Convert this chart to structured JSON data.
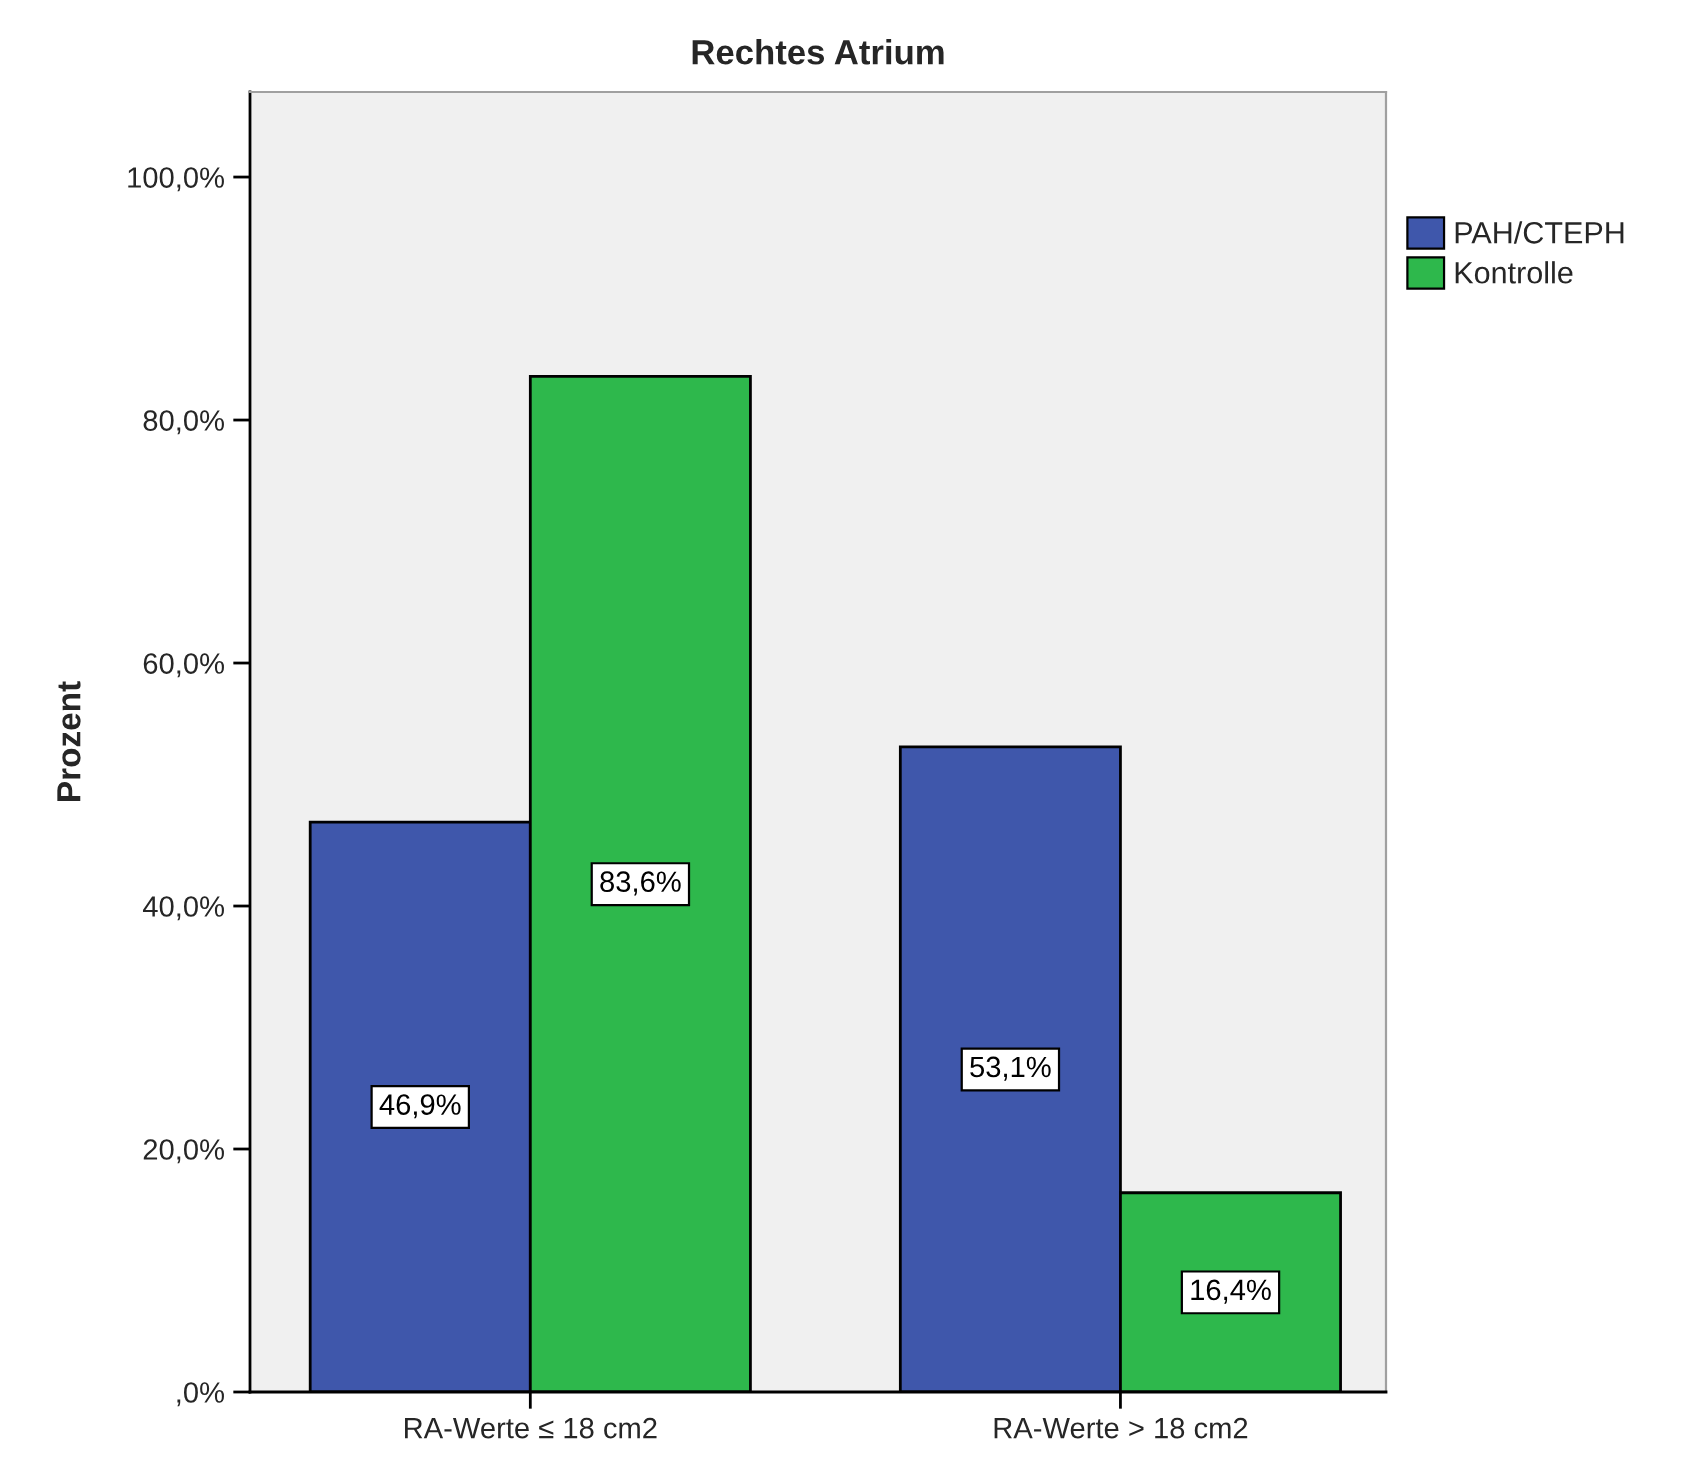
{
  "chart_data": {
    "type": "bar",
    "title": "Rechtes Atrium",
    "ylabel": "Prozent",
    "categories": [
      "RA-Werte ≤ 18 cm2",
      "RA-Werte > 18 cm2"
    ],
    "series": [
      {
        "name": "PAH/CTEPH",
        "color": "#3f57ab",
        "values": [
          46.9,
          53.1
        ],
        "value_labels": [
          "46,9%",
          "53,1%"
        ]
      },
      {
        "name": "Kontrolle",
        "color": "#2eb84c",
        "values": [
          83.6,
          16.4
        ],
        "value_labels": [
          "83,6%",
          "16,4%"
        ]
      }
    ],
    "ylim": [
      0,
      107
    ],
    "yticks": [
      {
        "value": 0,
        "label": ",0%"
      },
      {
        "value": 20,
        "label": "20,0%"
      },
      {
        "value": 40,
        "label": "40,0%"
      },
      {
        "value": 60,
        "label": "60,0%"
      },
      {
        "value": 80,
        "label": "80,0%"
      },
      {
        "value": 100,
        "label": "100,0%"
      }
    ],
    "legend": "top right"
  }
}
